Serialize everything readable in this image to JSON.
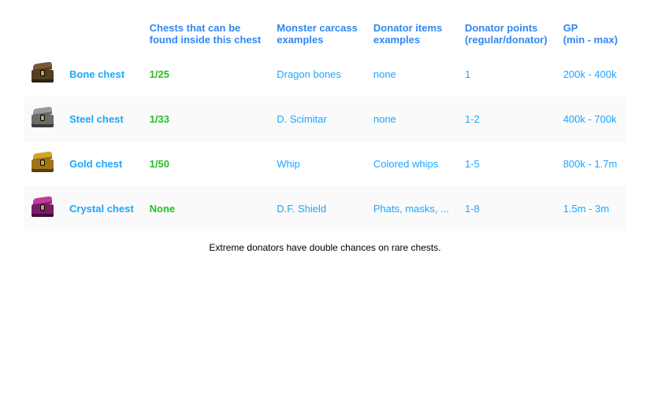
{
  "colors": {
    "header_blue": "#2f88f2",
    "cell_blue": "#1aa7ff",
    "cell_green": "#25c125",
    "footnote": "#000000"
  },
  "header": {
    "chest_label_a": "Chests that can be",
    "chest_label_b": "found inside this chest",
    "monster_label_a": "Monster carcass",
    "monster_label_b": "examples",
    "donator_items_a": "Donator items",
    "donator_items_b": "examples",
    "donator_points_a": "Donator points",
    "donator_points_b": "(regular/donator)",
    "gp_label_a": "GP",
    "gp_label_b": "(min - max)"
  },
  "rows": [
    {
      "name": "Bone chest",
      "icon_colors": {
        "lid": "#7a5a33",
        "body": "#533e22",
        "band": "#845a2b"
      },
      "chests_inside": "1/25",
      "monster_examples": "Dragon bones",
      "donator_items": "none",
      "donator_points": "1",
      "gp": "200k - 400k"
    },
    {
      "name": "Steel chest",
      "icon_colors": {
        "lid": "#9a9a9a",
        "body": "#6c6c6c",
        "band": "#b0b0b0"
      },
      "chests_inside": "1/33",
      "monster_examples": "D. Scimitar",
      "donator_items": "none",
      "donator_points": "1-2",
      "gp": "400k - 700k"
    },
    {
      "name": "Gold chest",
      "icon_colors": {
        "lid": "#d4a325",
        "body": "#9f741a",
        "band": "#e6bb4a"
      },
      "chests_inside": "1/50",
      "monster_examples": "Whip",
      "donator_items": "Colored whips",
      "donator_points": "1-5",
      "gp": "800k - 1.7m"
    },
    {
      "name": "Crystal chest",
      "icon_colors": {
        "lid": "#c23aa3",
        "body": "#7a1d69",
        "band": "#d06cc0"
      },
      "chests_inside": "None",
      "monster_examples": "D.F. Shield",
      "donator_items": "Phats, masks, ...",
      "donator_points": "1-8",
      "gp": "1.5m - 3m"
    }
  ],
  "footnote": "Extreme donators have double chances on rare chests."
}
